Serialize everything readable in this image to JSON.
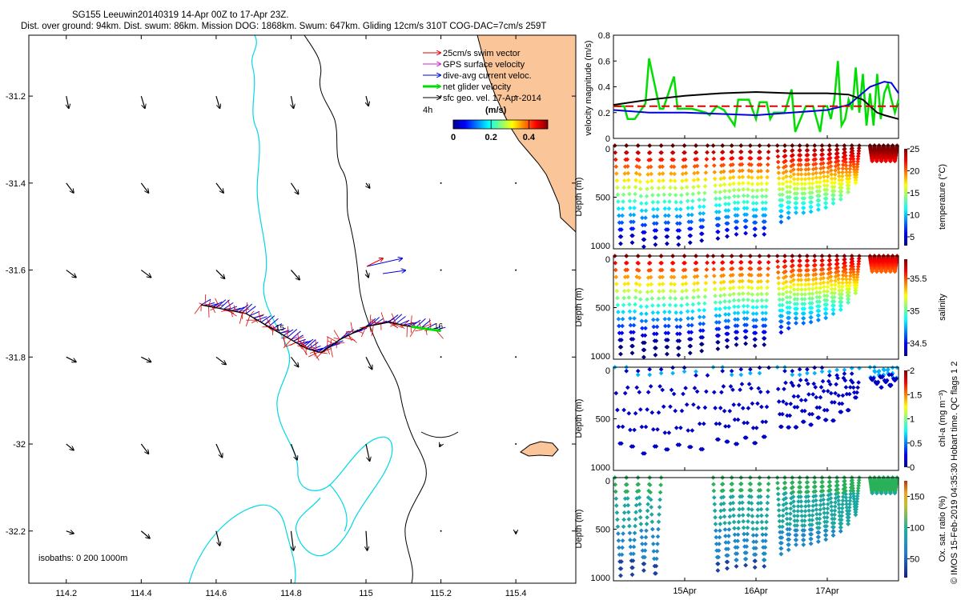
{
  "figure": {
    "title_line1": "SG155 Leeuwin20140319 14-Apr 00Z to 17-Apr 23Z.",
    "title_line2": "Dist. over ground: 94km. Dist. swum: 86km. Mission DOG: 1868km. Swum: 647km. Gliding 12cm/s 310T COG-DAC=7cm/s 259T",
    "credit": "© IMOS 15-Feb-2019 04:35:30 Hobart time. QC flags 1  2"
  },
  "chart_data": [
    {
      "type": "scatter",
      "name": "map",
      "xlabel": "",
      "ylabel": "",
      "xlim": [
        114.1,
        115.56
      ],
      "ylim": [
        -32.32,
        -31.06
      ],
      "x_ticks": [
        "114.2",
        "114.4",
        "114.6",
        "114.8",
        "115",
        "115.2",
        "115.4"
      ],
      "x_tick_values": [
        114.2,
        114.4,
        114.6,
        114.8,
        115.0,
        115.2,
        115.4
      ],
      "y_ticks": [
        "-31.2",
        "-31.4",
        "-31.6",
        "-31.8",
        "-32",
        "-32.2"
      ],
      "y_tick_values": [
        -31.2,
        -31.4,
        -31.6,
        -31.8,
        -32.0,
        -32.2
      ],
      "legend": [
        {
          "label": "25cm/s swim vector",
          "color": "#e00000"
        },
        {
          "label": "GPS surface velocity",
          "color": "#d020d0"
        },
        {
          "label": "dive-avg current veloc.",
          "color": "#0000e0"
        },
        {
          "label": "net glider velocity",
          "color": "#00dd00"
        },
        {
          "label": "sfc geo. vel. 17-Apr-2014",
          "color": "#000000"
        }
      ],
      "scale_label": "4h",
      "colorbar": {
        "label": "(m/s)",
        "ticks": [
          "0",
          "0.2",
          "0.4"
        ],
        "tick_values": [
          0,
          0.2,
          0.4
        ],
        "range": [
          0,
          0.5
        ]
      },
      "isobaths_label": "isobaths: 0   200  1000m",
      "track_labels": [
        "15",
        "16"
      ],
      "track": {
        "lon": [
          114.56,
          114.62,
          114.68,
          114.74,
          114.8,
          114.84,
          114.88,
          114.93,
          115.0,
          115.06,
          115.12,
          115.2
        ],
        "lat": [
          -31.68,
          -31.69,
          -31.7,
          -31.73,
          -31.76,
          -31.78,
          -31.79,
          -31.76,
          -31.73,
          -31.72,
          -31.73,
          -31.74
        ]
      },
      "geo_vectors": {
        "lon": [
          114.2,
          114.4,
          114.6,
          114.8,
          115.0,
          115.2,
          115.4
        ],
        "lat": [
          -31.2,
          -31.4,
          -31.6,
          -31.8,
          -32.0,
          -32.2
        ],
        "u": [
          [
            0.02,
            0.03,
            0.03,
            0.02,
            0.02,
            0.0,
            0.0
          ],
          [
            0.06,
            0.06,
            0.06,
            0.06,
            0.03,
            0.0,
            0.0
          ],
          [
            0.08,
            0.08,
            0.07,
            0.07,
            0.02,
            0.0,
            0.0
          ],
          [
            0.08,
            0.08,
            0.08,
            0.06,
            0.05,
            0.0,
            0.0
          ],
          [
            0.06,
            0.06,
            0.05,
            0.05,
            0.03,
            -0.01,
            0.0
          ],
          [
            0.06,
            0.07,
            0.03,
            0.02,
            0.01,
            0.0,
            0.0
          ]
        ],
        "v": [
          [
            -0.1,
            -0.1,
            -0.1,
            -0.1,
            -0.08,
            0.0,
            0.0
          ],
          [
            -0.08,
            -0.08,
            -0.08,
            -0.09,
            -0.04,
            0.0,
            0.0
          ],
          [
            -0.06,
            -0.06,
            -0.07,
            -0.08,
            -0.06,
            0.0,
            0.0
          ],
          [
            -0.04,
            -0.04,
            -0.06,
            -0.08,
            -0.1,
            0.0,
            0.0
          ],
          [
            -0.05,
            -0.08,
            -0.11,
            -0.13,
            -0.14,
            -0.02,
            0.0
          ],
          [
            -0.02,
            -0.06,
            -0.12,
            -0.16,
            -0.16,
            0.0,
            -0.02
          ]
        ]
      }
    },
    {
      "type": "line",
      "name": "velocity",
      "ylabel": "velocity magnitude (m/s)",
      "xlim": [
        14.0,
        18.0
      ],
      "ylim": [
        0,
        0.8
      ],
      "y_ticks": [
        "0",
        "0.2",
        "0.4",
        "0.6",
        "0.8"
      ],
      "y_tick_values": [
        0,
        0.2,
        0.4,
        0.6,
        0.8
      ],
      "series": [
        {
          "name": "net glider velocity",
          "color": "#00dd00",
          "x": [
            14.0,
            14.15,
            14.2,
            14.3,
            14.45,
            14.5,
            14.65,
            14.7,
            14.85,
            14.9,
            15.1,
            15.3,
            15.35,
            15.45,
            15.55,
            15.7,
            15.75,
            15.9,
            16.0,
            16.05,
            16.15,
            16.2,
            16.25,
            16.4,
            16.5,
            16.55,
            16.7,
            16.8,
            16.9,
            16.95,
            17.0,
            17.05,
            17.1,
            17.15,
            17.2,
            17.25,
            17.3,
            17.35,
            17.4,
            17.45,
            17.5,
            17.55,
            17.6,
            17.65,
            17.7,
            17.75,
            17.8,
            17.85,
            17.9,
            17.95,
            18.0
          ],
          "y": [
            0.25,
            0.25,
            0.15,
            0.15,
            0.27,
            0.62,
            0.23,
            0.23,
            0.48,
            0.23,
            0.23,
            0.2,
            0.18,
            0.25,
            0.22,
            0.1,
            0.3,
            0.3,
            0.15,
            0.28,
            0.28,
            0.15,
            0.2,
            0.2,
            0.38,
            0.05,
            0.25,
            0.25,
            0.05,
            0.25,
            0.25,
            0.15,
            0.3,
            0.6,
            0.1,
            0.15,
            0.3,
            0.22,
            0.55,
            0.2,
            0.5,
            0.1,
            0.35,
            0.1,
            0.5,
            0.15,
            0.35,
            0.42,
            0.3,
            0.2,
            0.3
          ]
        },
        {
          "name": "dive-avg current",
          "color": "#0000e0",
          "x": [
            14.0,
            14.5,
            15.0,
            15.5,
            16.0,
            16.5,
            17.0,
            17.3,
            17.6,
            17.8,
            17.9,
            18.0
          ],
          "y": [
            0.22,
            0.2,
            0.2,
            0.19,
            0.18,
            0.2,
            0.22,
            0.26,
            0.4,
            0.44,
            0.43,
            0.35
          ]
        },
        {
          "name": "sfc geo. vel.",
          "color": "#000000",
          "x": [
            14.0,
            14.5,
            15.0,
            15.5,
            16.0,
            16.5,
            17.0,
            17.3,
            17.5,
            17.6,
            17.7,
            17.8,
            18.0
          ],
          "y": [
            0.26,
            0.3,
            0.33,
            0.35,
            0.36,
            0.35,
            0.35,
            0.34,
            0.3,
            0.25,
            0.2,
            0.18,
            0.15
          ]
        },
        {
          "name": "mean",
          "color": "#e00000",
          "dashed": true,
          "x": [
            14.0,
            18.0
          ],
          "y": [
            0.25,
            0.25
          ]
        }
      ]
    },
    {
      "type": "scatter",
      "name": "temperature",
      "ylabel": "Depth (m)",
      "xlim": [
        14.0,
        18.0
      ],
      "ylim": [
        1000,
        0
      ],
      "y_ticks": [
        "0",
        "500",
        "1000"
      ],
      "y_tick_values": [
        0,
        500,
        1000
      ],
      "colorbar_label": "temperature (°C)",
      "color_ticks": [
        "5",
        "10",
        "15",
        "20",
        "25"
      ],
      "color_tick_values": [
        5,
        10,
        15,
        20,
        25
      ],
      "color_range": [
        3,
        25
      ]
    },
    {
      "type": "scatter",
      "name": "salinity",
      "ylabel": "Depth (m)",
      "xlim": [
        14.0,
        18.0
      ],
      "ylim": [
        1000,
        0
      ],
      "y_ticks": [
        "0",
        "500",
        "1000"
      ],
      "y_tick_values": [
        0,
        500,
        1000
      ],
      "colorbar_label": "salinity",
      "color_ticks": [
        "34.5",
        "35",
        "35.5"
      ],
      "color_tick_values": [
        34.5,
        35,
        35.5
      ],
      "color_range": [
        34.3,
        35.8
      ]
    },
    {
      "type": "scatter",
      "name": "chla",
      "ylabel": "Depth (m)",
      "xlim": [
        14.0,
        18.0
      ],
      "ylim": [
        1000,
        0
      ],
      "y_ticks": [
        "0",
        "500",
        "1000"
      ],
      "y_tick_values": [
        0,
        500,
        1000
      ],
      "colorbar_label": "chl-a (mg m⁻³)",
      "color_ticks": [
        "0",
        "0.5",
        "1",
        "1.5",
        "2"
      ],
      "color_tick_values": [
        0,
        0.5,
        1,
        1.5,
        2
      ],
      "color_range": [
        0,
        2
      ]
    },
    {
      "type": "scatter",
      "name": "oxygen",
      "ylabel": "Depth (m)",
      "xlim": [
        14.0,
        18.0
      ],
      "ylim": [
        1000,
        0
      ],
      "y_ticks": [
        "0",
        "500",
        "1000"
      ],
      "y_tick_values": [
        0,
        500,
        1000
      ],
      "x_ticks": [
        "15Apr",
        "16Apr",
        "17Apr"
      ],
      "x_tick_values": [
        15,
        16,
        17
      ],
      "colorbar_label": "Ox. sat. ratio (%)",
      "color_ticks": [
        "50",
        "100",
        "150"
      ],
      "color_tick_values": [
        50,
        100,
        150
      ],
      "color_range": [
        20,
        175
      ]
    }
  ],
  "colors": {
    "land": "#fbc59a",
    "isobath200": "#00d8e8",
    "coast": "#000000"
  }
}
